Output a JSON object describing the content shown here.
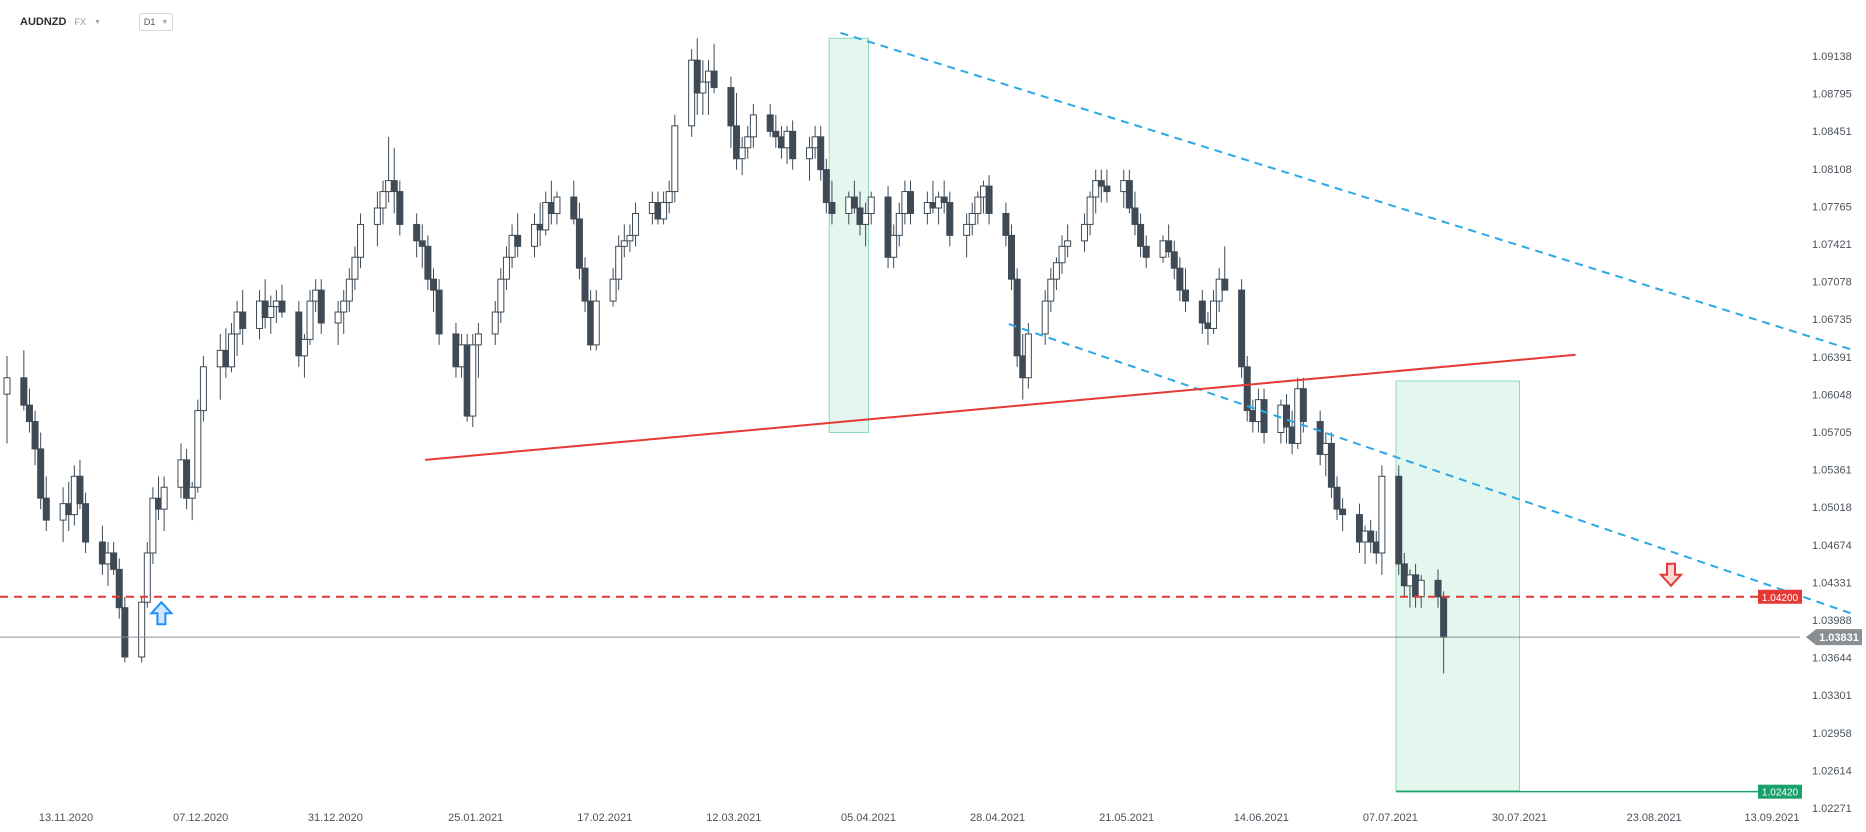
{
  "header": {
    "symbol": "AUDNZD",
    "market": "FX",
    "timeframe": "D1",
    "dropdown_icon": "caret-down-icon"
  },
  "colors": {
    "bull": "#ffffff",
    "bear": "#3e4a55",
    "wick": "#3e4a55",
    "trend_dashed": "#2aa9e6",
    "neckline": "#e53935",
    "resistance": "#e53935",
    "current_price_line": "#8a8f94",
    "zone_fill": "#e3f7ef",
    "zone_border": "#8fd9bb",
    "target": "#1aa06a"
  },
  "chart_data": {
    "type": "candlestick",
    "timeframe": "D1",
    "y_axis_labels": [
      "1.09138",
      "1.08795",
      "1.08451",
      "1.08108",
      "1.07765",
      "1.07421",
      "1.07078",
      "1.06735",
      "1.06391",
      "1.06048",
      "1.05705",
      "1.05361",
      "1.05018",
      "1.04674",
      "1.04331",
      "1.03988",
      "1.03644",
      "1.03301",
      "1.02958",
      "1.02614",
      "1.02271"
    ],
    "x_axis_labels": [
      "13.11.2020",
      "07.12.2020",
      "31.12.2020",
      "25.01.2021",
      "17.02.2021",
      "12.03.2021",
      "05.04.2021",
      "28.04.2021",
      "21.05.2021",
      "14.06.2021",
      "07.07.2021",
      "30.07.2021",
      "23.08.2021",
      "13.09.2021"
    ],
    "ylim": [
      1.0222,
      1.093
    ],
    "current_price": {
      "label": "1.03831",
      "value": 1.03831
    },
    "resistance_level": {
      "label": "1.04200",
      "value": 1.042
    },
    "target_level": {
      "label": "1.02420",
      "value": 1.0242
    },
    "candles": [
      [
        1.0605,
        1.064,
        1.056,
        1.062
      ],
      [
        1.062,
        1.0645,
        1.059,
        1.0595
      ],
      [
        1.0595,
        1.061,
        1.057,
        1.058
      ],
      [
        1.058,
        1.059,
        1.054,
        1.0555
      ],
      [
        1.0555,
        1.057,
        1.05,
        1.051
      ],
      [
        1.051,
        1.053,
        1.048,
        1.049
      ],
      [
        1.049,
        1.052,
        1.047,
        1.0505
      ],
      [
        1.0505,
        1.0525,
        1.048,
        1.0495
      ],
      [
        1.0495,
        1.054,
        1.0485,
        1.053
      ],
      [
        1.053,
        1.0545,
        1.05,
        1.0505
      ],
      [
        1.0505,
        1.0515,
        1.046,
        1.047
      ],
      [
        1.047,
        1.0485,
        1.044,
        1.045
      ],
      [
        1.045,
        1.047,
        1.043,
        1.046
      ],
      [
        1.046,
        1.047,
        1.044,
        1.0445
      ],
      [
        1.0445,
        1.0455,
        1.04,
        1.041
      ],
      [
        1.041,
        1.042,
        1.036,
        1.0365
      ],
      [
        1.0365,
        1.042,
        1.036,
        1.0415
      ],
      [
        1.0415,
        1.047,
        1.041,
        1.046
      ],
      [
        1.046,
        1.052,
        1.045,
        1.051
      ],
      [
        1.051,
        1.053,
        1.049,
        1.05
      ],
      [
        1.05,
        1.053,
        1.048,
        1.052
      ],
      [
        1.052,
        1.056,
        1.051,
        1.0545
      ],
      [
        1.0545,
        1.0555,
        1.05,
        1.051
      ],
      [
        1.051,
        1.0525,
        1.049,
        1.052
      ],
      [
        1.052,
        1.06,
        1.0515,
        1.059
      ],
      [
        1.059,
        1.064,
        1.058,
        1.063
      ],
      [
        1.063,
        1.066,
        1.06,
        1.0645
      ],
      [
        1.0645,
        1.0665,
        1.062,
        1.063
      ],
      [
        1.063,
        1.067,
        1.0625,
        1.066
      ],
      [
        1.066,
        1.069,
        1.064,
        1.068
      ],
      [
        1.068,
        1.07,
        1.065,
        1.0665
      ],
      [
        1.0665,
        1.07,
        1.0655,
        1.069
      ],
      [
        1.069,
        1.071,
        1.0665,
        1.0675
      ],
      [
        1.0675,
        1.0695,
        1.066,
        1.0685
      ],
      [
        1.0685,
        1.07,
        1.067,
        1.069
      ],
      [
        1.069,
        1.0705,
        1.0675,
        1.068
      ],
      [
        1.068,
        1.069,
        1.063,
        1.064
      ],
      [
        1.064,
        1.066,
        1.062,
        1.0655
      ],
      [
        1.0655,
        1.07,
        1.065,
        1.069
      ],
      [
        1.069,
        1.071,
        1.068,
        1.07
      ],
      [
        1.07,
        1.071,
        1.066,
        1.067
      ],
      [
        1.067,
        1.069,
        1.065,
        1.068
      ],
      [
        1.068,
        1.07,
        1.066,
        1.069
      ],
      [
        1.069,
        1.072,
        1.068,
        1.071
      ],
      [
        1.071,
        1.074,
        1.07,
        1.073
      ],
      [
        1.073,
        1.077,
        1.072,
        1.076
      ],
      [
        1.076,
        1.079,
        1.074,
        1.0775
      ],
      [
        1.0775,
        1.08,
        1.076,
        1.079
      ],
      [
        1.079,
        1.084,
        1.078,
        1.08
      ],
      [
        1.08,
        1.083,
        1.077,
        1.079
      ],
      [
        1.079,
        1.08,
        1.075,
        1.076
      ],
      [
        1.076,
        1.077,
        1.073,
        1.0745
      ],
      [
        1.0745,
        1.076,
        1.072,
        1.074
      ],
      [
        1.074,
        1.075,
        1.07,
        1.071
      ],
      [
        1.071,
        1.072,
        1.068,
        1.07
      ],
      [
        1.07,
        1.071,
        1.065,
        1.066
      ],
      [
        1.066,
        1.067,
        1.062,
        1.063
      ],
      [
        1.063,
        1.066,
        1.062,
        1.065
      ],
      [
        1.065,
        1.066,
        1.058,
        1.0585
      ],
      [
        1.0585,
        1.066,
        1.0575,
        1.065
      ],
      [
        1.065,
        1.067,
        1.062,
        1.066
      ],
      [
        1.066,
        1.069,
        1.065,
        1.068
      ],
      [
        1.068,
        1.072,
        1.067,
        1.071
      ],
      [
        1.071,
        1.074,
        1.07,
        1.073
      ],
      [
        1.073,
        1.076,
        1.072,
        1.075
      ],
      [
        1.075,
        1.077,
        1.073,
        1.074
      ],
      [
        1.074,
        1.077,
        1.073,
        1.076
      ],
      [
        1.076,
        1.078,
        1.074,
        1.0755
      ],
      [
        1.0755,
        1.079,
        1.075,
        1.078
      ],
      [
        1.078,
        1.08,
        1.076,
        1.077
      ],
      [
        1.077,
        1.079,
        1.076,
        1.0785
      ],
      [
        1.0785,
        1.08,
        1.076,
        1.0765
      ],
      [
        1.0765,
        1.078,
        1.071,
        1.072
      ],
      [
        1.072,
        1.073,
        1.068,
        1.069
      ],
      [
        1.069,
        1.07,
        1.0645,
        1.065
      ],
      [
        1.065,
        1.07,
        1.0645,
        1.069
      ],
      [
        1.069,
        1.072,
        1.0685,
        1.071
      ],
      [
        1.071,
        1.075,
        1.07,
        1.074
      ],
      [
        1.074,
        1.076,
        1.073,
        1.0745
      ],
      [
        1.0745,
        1.076,
        1.0735,
        1.075
      ],
      [
        1.075,
        1.078,
        1.074,
        1.077
      ],
      [
        1.077,
        1.079,
        1.076,
        1.078
      ],
      [
        1.078,
        1.079,
        1.076,
        1.0765
      ],
      [
        1.0765,
        1.079,
        1.076,
        1.078
      ],
      [
        1.078,
        1.08,
        1.077,
        1.079
      ],
      [
        1.079,
        1.086,
        1.078,
        1.085
      ],
      [
        1.085,
        1.092,
        1.084,
        1.091
      ],
      [
        1.091,
        1.093,
        1.086,
        1.088
      ],
      [
        1.088,
        1.091,
        1.086,
        1.089
      ],
      [
        1.089,
        1.091,
        1.086,
        1.09
      ],
      [
        1.09,
        1.0925,
        1.088,
        1.0885
      ],
      [
        1.0885,
        1.0895,
        1.083,
        1.085
      ],
      [
        1.085,
        1.088,
        1.081,
        1.082
      ],
      [
        1.082,
        1.084,
        1.0805,
        1.083
      ],
      [
        1.083,
        1.085,
        1.082,
        1.084
      ],
      [
        1.084,
        1.087,
        1.083,
        1.086
      ],
      [
        1.086,
        1.087,
        1.084,
        1.0845
      ],
      [
        1.0845,
        1.086,
        1.083,
        1.084
      ],
      [
        1.084,
        1.085,
        1.082,
        1.083
      ],
      [
        1.083,
        1.085,
        1.0815,
        1.0845
      ],
      [
        1.0845,
        1.0855,
        1.081,
        1.082
      ],
      [
        1.082,
        1.084,
        1.08,
        1.083
      ],
      [
        1.083,
        1.085,
        1.082,
        1.084
      ],
      [
        1.084,
        1.085,
        1.08,
        1.081
      ],
      [
        1.081,
        1.082,
        1.077,
        1.078
      ],
      [
        1.078,
        1.08,
        1.076,
        1.077
      ],
      [
        1.077,
        1.079,
        1.076,
        1.0785
      ],
      [
        1.0785,
        1.08,
        1.077,
        1.0775
      ],
      [
        1.0775,
        1.079,
        1.075,
        1.076
      ],
      [
        1.076,
        1.078,
        1.074,
        1.077
      ],
      [
        1.077,
        1.079,
        1.076,
        1.0785
      ],
      [
        1.0785,
        1.0795,
        1.072,
        1.073
      ],
      [
        1.073,
        1.076,
        1.072,
        1.075
      ],
      [
        1.075,
        1.078,
        1.074,
        1.077
      ],
      [
        1.077,
        1.08,
        1.076,
        1.079
      ],
      [
        1.079,
        1.08,
        1.076,
        1.077
      ],
      [
        1.077,
        1.079,
        1.076,
        1.078
      ],
      [
        1.078,
        1.08,
        1.077,
        1.0775
      ],
      [
        1.0775,
        1.079,
        1.076,
        1.0785
      ],
      [
        1.0785,
        1.08,
        1.077,
        1.078
      ],
      [
        1.078,
        1.079,
        1.074,
        1.075
      ],
      [
        1.075,
        1.077,
        1.073,
        1.076
      ],
      [
        1.076,
        1.078,
        1.075,
        1.077
      ],
      [
        1.077,
        1.079,
        1.076,
        1.0785
      ],
      [
        1.0785,
        1.08,
        1.077,
        1.0795
      ],
      [
        1.0795,
        1.0805,
        1.076,
        1.077
      ],
      [
        1.077,
        1.078,
        1.074,
        1.075
      ],
      [
        1.075,
        1.076,
        1.07,
        1.071
      ],
      [
        1.071,
        1.072,
        1.063,
        1.064
      ],
      [
        1.064,
        1.066,
        1.06,
        1.062
      ],
      [
        1.062,
        1.067,
        1.061,
        1.066
      ],
      [
        1.066,
        1.07,
        1.065,
        1.069
      ],
      [
        1.069,
        1.072,
        1.068,
        1.071
      ],
      [
        1.071,
        1.073,
        1.07,
        1.0725
      ],
      [
        1.0725,
        1.075,
        1.0715,
        1.074
      ],
      [
        1.074,
        1.076,
        1.073,
        1.0745
      ],
      [
        1.0745,
        1.077,
        1.0735,
        1.076
      ],
      [
        1.076,
        1.079,
        1.075,
        1.0785
      ],
      [
        1.0785,
        1.081,
        1.077,
        1.08
      ],
      [
        1.08,
        1.081,
        1.078,
        1.0795
      ],
      [
        1.0795,
        1.081,
        1.078,
        1.079
      ],
      [
        1.079,
        1.081,
        1.0775,
        1.08
      ],
      [
        1.08,
        1.081,
        1.077,
        1.0775
      ],
      [
        1.0775,
        1.079,
        1.075,
        1.076
      ],
      [
        1.076,
        1.077,
        1.073,
        1.074
      ],
      [
        1.074,
        1.075,
        1.072,
        1.073
      ],
      [
        1.073,
        1.075,
        1.0725,
        1.0745
      ],
      [
        1.0745,
        1.076,
        1.073,
        1.0735
      ],
      [
        1.0735,
        1.0745,
        1.071,
        1.072
      ],
      [
        1.072,
        1.073,
        1.069,
        1.07
      ],
      [
        1.07,
        1.072,
        1.068,
        1.069
      ],
      [
        1.069,
        1.07,
        1.066,
        1.067
      ],
      [
        1.067,
        1.068,
        1.065,
        1.0665
      ],
      [
        1.0665,
        1.07,
        1.066,
        1.069
      ],
      [
        1.069,
        1.072,
        1.068,
        1.071
      ],
      [
        1.071,
        1.074,
        1.07,
        1.07
      ],
      [
        1.07,
        1.071,
        1.062,
        1.063
      ],
      [
        1.063,
        1.064,
        1.058,
        1.059
      ],
      [
        1.059,
        1.06,
        1.057,
        1.058
      ],
      [
        1.058,
        1.061,
        1.057,
        1.06
      ],
      [
        1.06,
        1.061,
        1.056,
        1.057
      ],
      [
        1.057,
        1.06,
        1.056,
        1.0595
      ],
      [
        1.0595,
        1.0605,
        1.056,
        1.0575
      ],
      [
        1.0575,
        1.059,
        1.055,
        1.056
      ],
      [
        1.056,
        1.062,
        1.0555,
        1.061
      ],
      [
        1.061,
        1.062,
        1.057,
        1.058
      ],
      [
        1.058,
        1.059,
        1.054,
        1.055
      ],
      [
        1.055,
        1.057,
        1.053,
        1.056
      ],
      [
        1.056,
        1.057,
        1.051,
        1.052
      ],
      [
        1.052,
        1.053,
        1.049,
        1.05
      ],
      [
        1.05,
        1.051,
        1.048,
        1.0495
      ],
      [
        1.0495,
        1.0505,
        1.046,
        1.047
      ],
      [
        1.047,
        1.0485,
        1.045,
        1.048
      ],
      [
        1.048,
        1.049,
        1.046,
        1.047
      ],
      [
        1.047,
        1.048,
        1.045,
        1.046
      ],
      [
        1.046,
        1.054,
        1.044,
        1.053
      ],
      [
        1.053,
        1.054,
        1.044,
        1.045
      ],
      [
        1.045,
        1.046,
        1.042,
        1.043
      ],
      [
        1.043,
        1.0445,
        1.041,
        1.044
      ],
      [
        1.044,
        1.045,
        1.041,
        1.042
      ],
      [
        1.042,
        1.044,
        1.041,
        1.0435
      ],
      [
        1.0435,
        1.0445,
        1.041,
        1.042
      ],
      [
        1.042,
        1.0425,
        1.035,
        1.0383
      ]
    ],
    "annotations": [
      {
        "type": "trendline",
        "style": "dashed",
        "color_key": "trend_dashed",
        "from": [
          "31.03.2021",
          1.0935
        ],
        "to": [
          "27.09.2021",
          1.0646
        ]
      },
      {
        "type": "trendline",
        "style": "dashed",
        "color_key": "trend_dashed",
        "from": [
          "30.04.2021",
          1.0669
        ],
        "to": [
          "27.09.2021",
          1.0405
        ]
      },
      {
        "type": "trendline",
        "style": "solid",
        "color_key": "neckline",
        "from": [
          "16.01.2021",
          1.0545
        ],
        "to": [
          "09.08.2021",
          1.0641
        ]
      },
      {
        "type": "horizontal",
        "style": "dashed",
        "color_key": "resistance",
        "value": 1.042
      },
      {
        "type": "horizontal",
        "style": "solid",
        "color_key": "current_price_line",
        "value": 1.03831
      },
      {
        "type": "zone",
        "from": [
          "29.03.2021",
          1.093
        ],
        "to": [
          "05.04.2021",
          1.057
        ]
      },
      {
        "type": "zone",
        "from": [
          "08.07.2021",
          1.0617
        ],
        "to": [
          "30.07.2021",
          1.0243
        ]
      },
      {
        "type": "horizontal_segment",
        "color_key": "target",
        "value": 1.0242,
        "from": "08.07.2021",
        "to": "17.09.2021"
      },
      {
        "type": "arrow",
        "direction": "up",
        "color": "#1e90ff",
        "at": [
          "30.11.2020",
          1.0415
        ]
      },
      {
        "type": "arrow",
        "direction": "down",
        "color": "#e53935",
        "at": [
          "26.08.2021",
          1.043
        ]
      }
    ]
  }
}
